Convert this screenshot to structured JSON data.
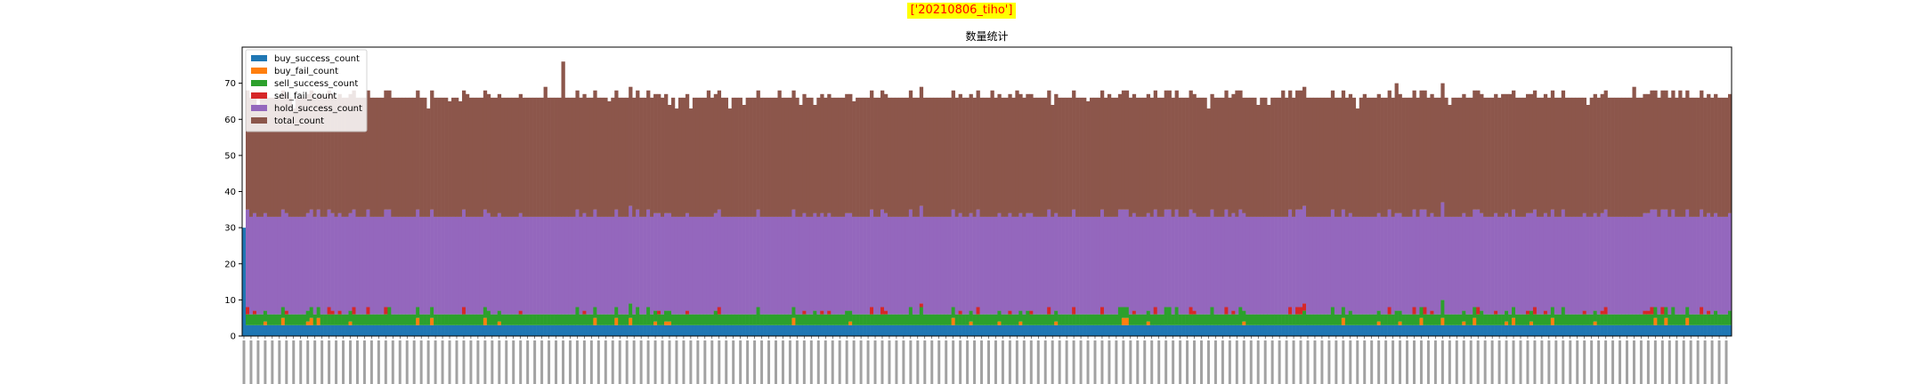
{
  "suptitle": "['20210806_tiho']",
  "chart_data": {
    "type": "bar",
    "stacked": true,
    "title": "数量统计",
    "xlabel": "",
    "ylabel": "",
    "ylim": [
      0,
      80
    ],
    "yticks": [
      0,
      10,
      20,
      30,
      40,
      50,
      60,
      70
    ],
    "legend_position": "top-left",
    "num_bars": 420,
    "typical_values": {
      "buy_success_count": 3,
      "buy_fail_count": 0,
      "sell_success_count": 3,
      "sell_fail_count": 0,
      "hold_success_count": 27,
      "total_count": 33
    },
    "first_bar": {
      "buy_success_count": 30,
      "buy_fail_count": 0,
      "sell_success_count": 0,
      "sell_fail_count": 0,
      "hold_success_count": 0,
      "total_count": 0
    },
    "peak_total_stack": 76,
    "series": [
      {
        "name": "buy_success_count",
        "color": "#1f77b4"
      },
      {
        "name": "buy_fail_count",
        "color": "#ff7f0e"
      },
      {
        "name": "sell_success_count",
        "color": "#2ca02c"
      },
      {
        "name": "sell_fail_count",
        "color": "#d62728"
      },
      {
        "name": "hold_success_count",
        "color": "#9467bd"
      },
      {
        "name": "total_count",
        "color": "#8c564b"
      }
    ]
  }
}
